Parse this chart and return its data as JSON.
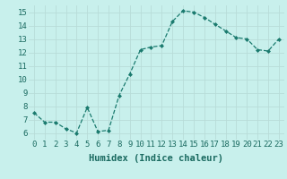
{
  "x": [
    0,
    1,
    2,
    3,
    4,
    5,
    6,
    7,
    8,
    9,
    10,
    11,
    12,
    13,
    14,
    15,
    16,
    17,
    18,
    19,
    20,
    21,
    22,
    23
  ],
  "y": [
    7.5,
    6.8,
    6.8,
    6.3,
    6.0,
    7.9,
    6.1,
    6.2,
    8.8,
    10.4,
    12.2,
    12.4,
    12.5,
    14.3,
    15.1,
    15.0,
    14.6,
    14.1,
    13.6,
    13.1,
    13.0,
    12.2,
    12.1,
    13.0
  ],
  "xlim": [
    -0.5,
    23.5
  ],
  "ylim": [
    5.5,
    15.5
  ],
  "yticks": [
    6,
    7,
    8,
    9,
    10,
    11,
    12,
    13,
    14,
    15
  ],
  "xticks": [
    0,
    1,
    2,
    3,
    4,
    5,
    6,
    7,
    8,
    9,
    10,
    11,
    12,
    13,
    14,
    15,
    16,
    17,
    18,
    19,
    20,
    21,
    22,
    23
  ],
  "xlabel": "Humidex (Indice chaleur)",
  "background_color": "#c8f0ec",
  "grid_color": "#b8dcd8",
  "line_color": "#1a7a6e",
  "marker_color": "#1a7a6e",
  "tick_label_color": "#1a6a60",
  "axis_label_color": "#1a6a60",
  "font_size_ticks": 6.5,
  "font_size_xlabel": 7.5
}
